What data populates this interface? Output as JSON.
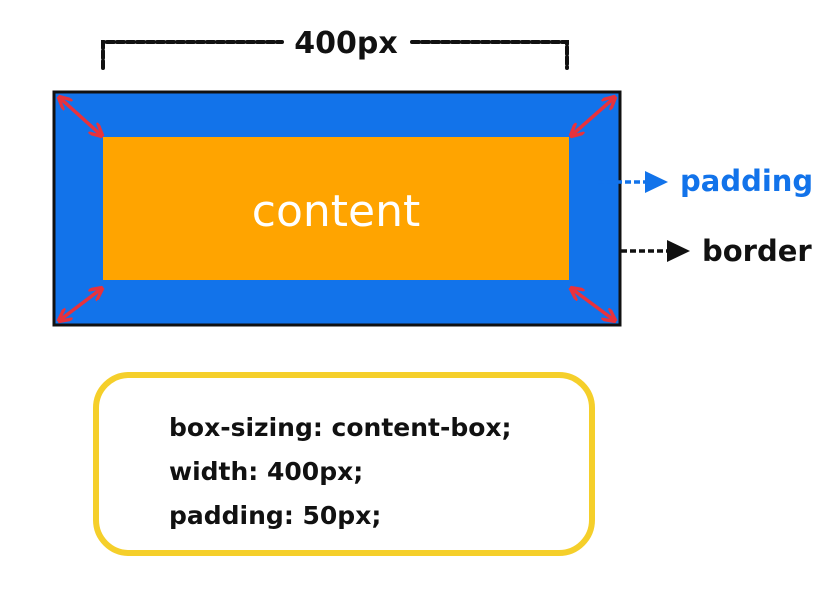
{
  "diagram": {
    "width_label": "400px",
    "content_label": "content",
    "padding_label": "padding",
    "border_label": "border",
    "colors": {
      "border": "#111111",
      "padding": "#1273ea",
      "content": "#ffa400",
      "padding_text": "#1273ea",
      "corner_arrows": "#e8323c",
      "code_box_border": "#f5cf2a"
    }
  },
  "code": {
    "lines": [
      "box-sizing: content-box;",
      "width: 400px;",
      "padding: 50px;"
    ]
  }
}
